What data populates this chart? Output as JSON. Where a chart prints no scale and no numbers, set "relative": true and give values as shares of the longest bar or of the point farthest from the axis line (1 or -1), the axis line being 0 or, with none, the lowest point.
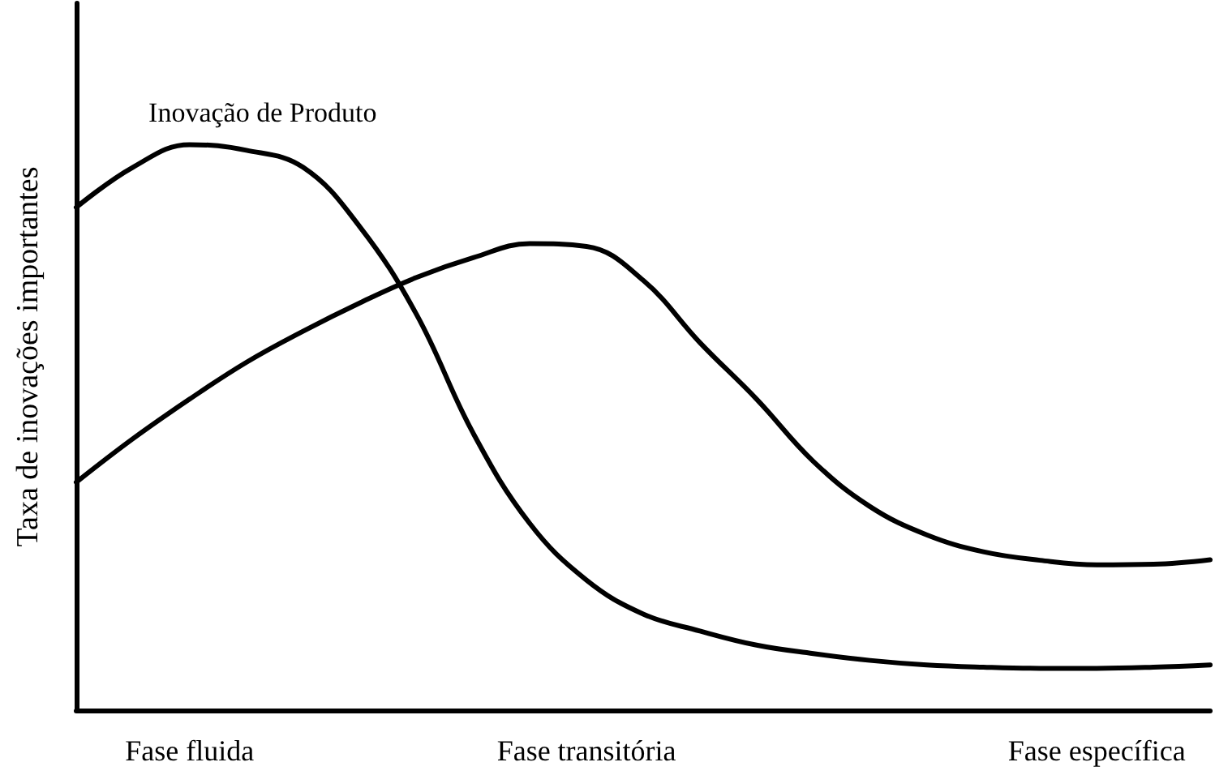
{
  "chart_data": {
    "type": "line",
    "relative": true,
    "ylabel": "Taxa de inovações importantes",
    "categories": [
      null,
      null,
      "Fase fluida",
      null,
      null,
      null,
      null,
      null,
      null,
      "Fase transitória",
      null,
      null,
      null,
      null,
      null,
      null,
      null,
      null,
      "Fase específica",
      null,
      null
    ],
    "grid": false,
    "legend": false,
    "marker": "none",
    "line_style": "solid",
    "series": [
      {
        "name": "Inovação de Produto",
        "color": "#000000",
        "values": [
          0.889,
          0.96,
          1.0,
          0.99,
          0.96,
          0.855,
          0.7,
          0.49,
          0.33,
          0.23,
          0.17,
          0.14,
          0.115,
          0.1,
          0.088,
          0.08,
          0.076,
          0.074,
          0.074,
          0.076,
          0.08
        ]
      },
      {
        "color": "#000000",
        "values": [
          0.403,
          0.48,
          0.55,
          0.615,
          0.67,
          0.72,
          0.765,
          0.8,
          0.825,
          0.82,
          0.76,
          0.65,
          0.55,
          0.44,
          0.36,
          0.31,
          0.28,
          0.265,
          0.257,
          0.258,
          0.266
        ]
      }
    ]
  }
}
